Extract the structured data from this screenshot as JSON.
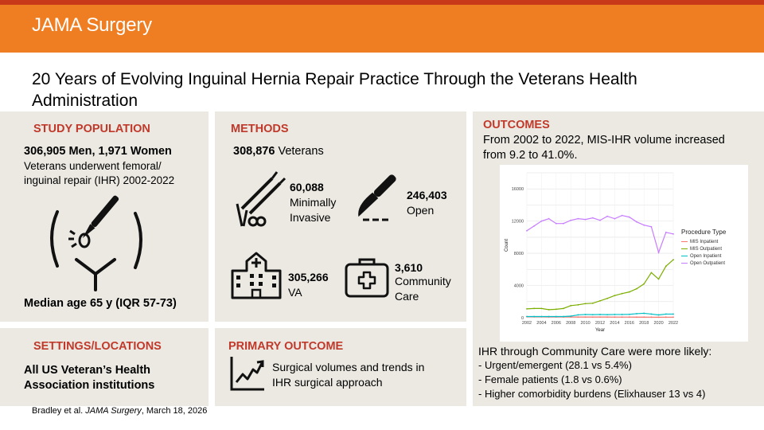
{
  "header": {
    "journal": "JAMA Surgery",
    "title": "20 Years of Evolving Inguinal Hernia Repair Practice Through the Veterans Health Administration"
  },
  "study_population": {
    "heading": "STUDY POPULATION",
    "counts": "306,905 Men, 1,971 Women",
    "line1": "Veterans underwent femoral/",
    "line2": "inguinal repair (IHR) 2002-2022",
    "median": "Median age 65 y (IQR 57-73)"
  },
  "methods": {
    "heading": "METHODS",
    "veterans_num": "308,876",
    "veterans_label": "Veterans",
    "mis_num": "60,088",
    "mis_label1": "Minimally",
    "mis_label2": "Invasive",
    "open_num": "246,403",
    "open_label": "Open",
    "va_num": "305,266",
    "va_label": "VA",
    "cc_num": "3,610",
    "cc_label1": "Community",
    "cc_label2": "Care"
  },
  "outcomes": {
    "heading": "OUTCOMES",
    "line1": "From 2002 to 2022, MIS-IHR volume increased",
    "line2": "from 9.2 to 41.0%.",
    "cc_intro": "IHR through Community Care were more likely:",
    "bullet1": "- Urgent/emergent (28.1 vs 5.4%)",
    "bullet2": "- Female patients (1.8 vs 0.6%)",
    "bullet3": "- Higher comorbidity burdens (Elixhauser 13 vs 4)"
  },
  "settings": {
    "heading": "SETTINGS/LOCATIONS",
    "line1": "All US Veteran’s Health",
    "line2": "Association institutions"
  },
  "primary_outcome": {
    "heading": "PRIMARY OUTCOME",
    "line1": "Surgical volumes and trends in",
    "line2": "IHR surgical approach"
  },
  "citation": {
    "authors": "Bradley et al.",
    "journal": "JAMA Surgery",
    "date": ", March 18, 2026"
  },
  "chart_data": {
    "type": "line",
    "xlabel": "Year",
    "ylabel": "Count",
    "legend_title": "Procedure Type",
    "legend_position": "right",
    "grid": true,
    "ylim": [
      0,
      18000
    ],
    "xlim": [
      2002,
      2022
    ],
    "yticks": [
      "0",
      "2000",
      "4000",
      "6000",
      "8000",
      "10000",
      "12000",
      "14000",
      "16000",
      "18000"
    ],
    "ytick_values": [
      0,
      2000,
      4000,
      6000,
      8000,
      10000,
      12000,
      14000,
      16000,
      18000
    ],
    "xticks": [
      "2002",
      "2004",
      "2006",
      "2008",
      "2010",
      "2012",
      "2014",
      "2016",
      "2018",
      "2020",
      "2022"
    ],
    "xtick_values": [
      2002,
      2004,
      2006,
      2008,
      2010,
      2012,
      2014,
      2016,
      2018,
      2020,
      2022
    ],
    "x": [
      2002,
      2003,
      2004,
      2005,
      2006,
      2007,
      2008,
      2009,
      2010,
      2011,
      2012,
      2013,
      2014,
      2015,
      2016,
      2017,
      2018,
      2019,
      2020,
      2021,
      2022
    ],
    "series": [
      {
        "name": "MIS Inpatient",
        "color": "#f8766d",
        "values": [
          120,
          110,
          110,
          100,
          100,
          95,
          95,
          90,
          90,
          90,
          85,
          85,
          80,
          80,
          80,
          75,
          75,
          70,
          60,
          70,
          70
        ]
      },
      {
        "name": "MIS Outpatient",
        "color": "#7cae00",
        "values": [
          1100,
          1150,
          1150,
          1000,
          1050,
          1150,
          1500,
          1600,
          1750,
          1800,
          2100,
          2400,
          2750,
          3000,
          3200,
          3600,
          4200,
          5600,
          4800,
          6400,
          7200
        ]
      },
      {
        "name": "Open Inpatient",
        "color": "#00bfc4",
        "values": [
          150,
          150,
          150,
          150,
          150,
          150,
          200,
          350,
          400,
          380,
          400,
          380,
          400,
          400,
          420,
          500,
          550,
          450,
          350,
          450,
          450
        ]
      },
      {
        "name": "Open Outpatient",
        "color": "#c77cff",
        "values": [
          10800,
          11400,
          12000,
          12300,
          11700,
          11700,
          12100,
          12300,
          12200,
          12400,
          12100,
          12600,
          12300,
          12700,
          12500,
          11900,
          11500,
          11300,
          8100,
          10600,
          10400
        ]
      }
    ]
  }
}
